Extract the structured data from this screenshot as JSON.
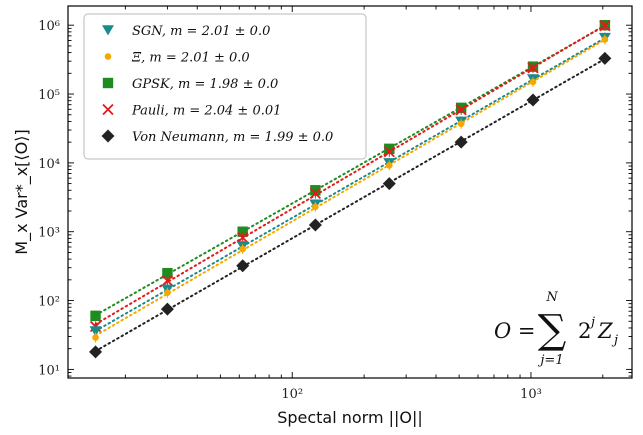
{
  "chart_data": {
    "type": "scatter",
    "xscale": "log",
    "yscale": "log",
    "xlim": [
      11.5,
      2650
    ],
    "ylim": [
      7.5,
      1900000
    ],
    "xlabel": "Spectal norm ||O||",
    "ylabel": "M_x Var*_x[⟨O⟩]",
    "xticks": [
      {
        "value": 100,
        "label": "10²"
      },
      {
        "value": 1000,
        "label": "10³"
      }
    ],
    "yticks": [
      {
        "value": 10,
        "label": "10¹"
      },
      {
        "value": 100,
        "label": "10²"
      },
      {
        "value": 1000,
        "label": "10³"
      },
      {
        "value": 10000,
        "label": "10⁴"
      },
      {
        "value": 100000,
        "label": "10⁵"
      },
      {
        "value": 1000000,
        "label": "10⁶"
      }
    ],
    "legend_position": "top-left",
    "annotation": {
      "lhs": "O =",
      "sum": "∑",
      "upper": "N",
      "lower": "j=1",
      "term_base": "2",
      "term_exp": "j",
      "term_rest": "Z",
      "term_sub": "j"
    },
    "x": [
      15,
      30,
      62,
      125,
      255,
      510,
      1020,
      2040
    ],
    "series": [
      {
        "name": "SGN, m = 2.01 ± 0.0",
        "marker": "triangle-down",
        "color": "#1a8a8a",
        "values": [
          36,
          145,
          620,
          2500,
          10000,
          40000,
          165000,
          660000
        ]
      },
      {
        "name": "Ξ, m = 2.01 ± 0.0",
        "marker": "circle-small",
        "color": "#f5a800",
        "values": [
          29,
          130,
          560,
          2300,
          9200,
          37000,
          150000,
          620000
        ]
      },
      {
        "name": "GPSK, m = 1.98 ± 0.0",
        "marker": "square",
        "color": "#1e8c1e",
        "values": [
          60,
          250,
          1000,
          4000,
          16000,
          63000,
          250000,
          1000000
        ]
      },
      {
        "name": "Pauli, m = 2.04 ± 0.01",
        "marker": "x",
        "color": "#e31a1c",
        "values": [
          42,
          195,
          820,
          3600,
          14500,
          59000,
          240000,
          980000
        ]
      },
      {
        "name": "Von Neumann, m = 1.99 ± 0.0",
        "marker": "diamond",
        "color": "#222222",
        "values": [
          18,
          75,
          320,
          1250,
          5000,
          20000,
          82000,
          330000
        ]
      }
    ]
  }
}
